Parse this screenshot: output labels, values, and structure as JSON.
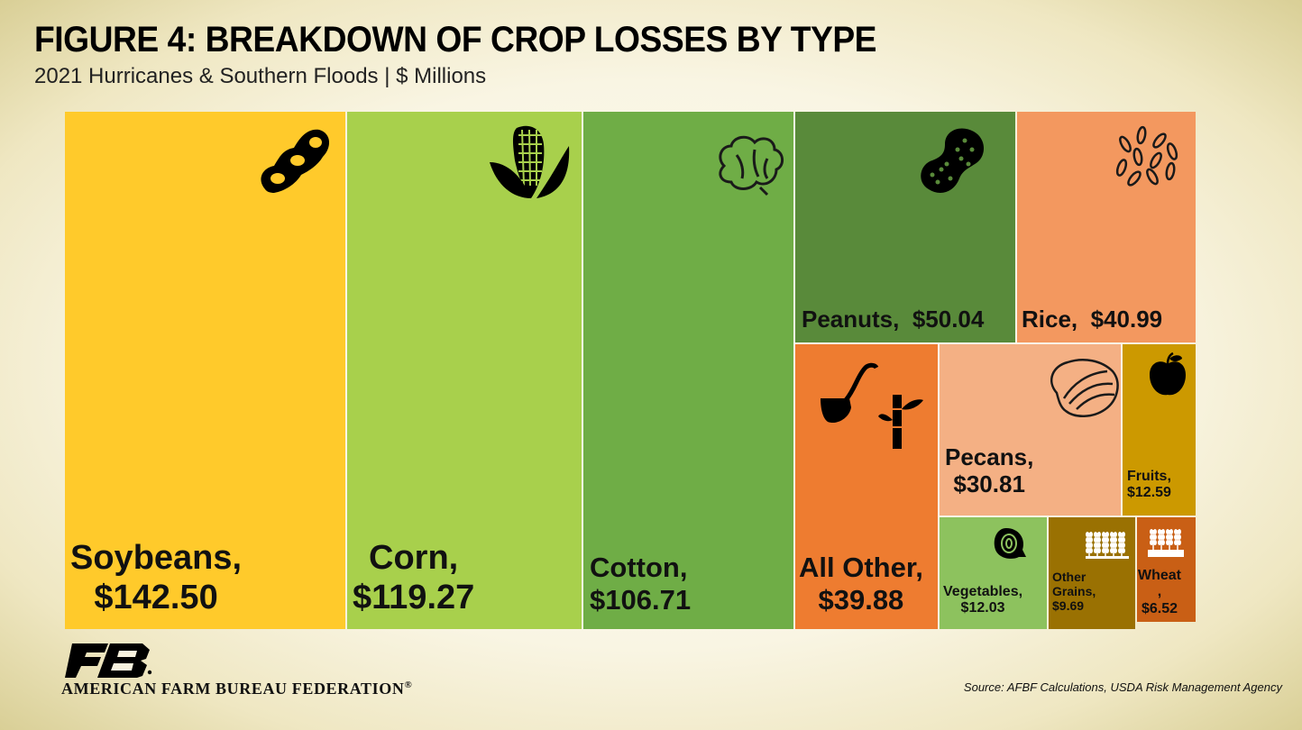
{
  "header": {
    "title": "FIGURE 4: BREAKDOWN OF CROP LOSSES BY TYPE",
    "subtitle": "2021 Hurricanes & Southern Floods | $ Millions"
  },
  "footer": {
    "org_name": "AMERICAN FARM BUREAU FEDERATION",
    "logo_mark": "FB",
    "source": "Source: AFBF Calculations, USDA Risk Management Agency"
  },
  "chart_data": {
    "type": "treemap",
    "title": "FIGURE 4: BREAKDOWN OF CROP LOSSES BY TYPE",
    "subtitle": "2021 Hurricanes & Southern Floods | $ Millions",
    "unit": "$ Millions",
    "items": [
      {
        "name": "Soybeans",
        "value": 142.5,
        "label_lines": [
          "Soybeans,",
          "$142.50"
        ],
        "color": "#ffca2b",
        "icon": "soybean-pod-icon"
      },
      {
        "name": "Corn",
        "value": 119.27,
        "label_lines": [
          "Corn,",
          "$119.27"
        ],
        "color": "#a8d04c",
        "icon": "corn-icon"
      },
      {
        "name": "Cotton",
        "value": 106.71,
        "label_lines": [
          "Cotton,",
          "$106.71"
        ],
        "color": "#6fad46",
        "icon": "cotton-icon"
      },
      {
        "name": "Peanuts",
        "value": 50.04,
        "label_lines": [
          "Peanuts,  $50.04"
        ],
        "color": "#598a3a",
        "icon": "peanut-icon"
      },
      {
        "name": "Rice",
        "value": 40.99,
        "label_lines": [
          "Rice,  $40.99"
        ],
        "color": "#f3985f",
        "icon": "rice-icon"
      },
      {
        "name": "All Other",
        "value": 39.88,
        "label_lines": [
          "All Other,",
          "$39.88"
        ],
        "color": "#ee7c30",
        "icon": "pipe-bamboo-icon"
      },
      {
        "name": "Pecans",
        "value": 30.81,
        "label_lines": [
          "Pecans,",
          "$30.81"
        ],
        "color": "#f4b084",
        "icon": "pecan-icon"
      },
      {
        "name": "Fruits",
        "value": 12.59,
        "label_lines": [
          "Fruits,",
          "$12.59"
        ],
        "color": "#cc9900",
        "icon": "apple-icon"
      },
      {
        "name": "Vegetables",
        "value": 12.03,
        "label_lines": [
          "Vegetables,",
          "$12.03"
        ],
        "color": "#8dc25e",
        "icon": "onion-icon"
      },
      {
        "name": "Other Grains",
        "value": 9.69,
        "label_lines": [
          "Other",
          "Grains,",
          "$9.69"
        ],
        "color": "#9a7102",
        "icon": "grain-icon"
      },
      {
        "name": "Wheat",
        "value": 6.52,
        "label_lines": [
          "Wheat",
          ",",
          "$6.52"
        ],
        "color": "#c95f15",
        "icon": "wheat-icon"
      }
    ]
  }
}
